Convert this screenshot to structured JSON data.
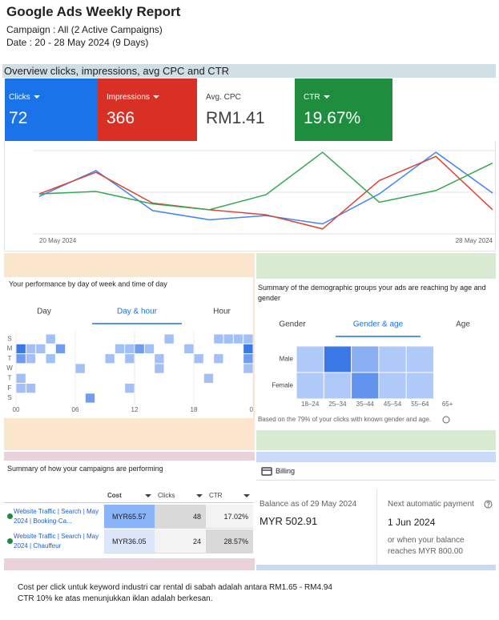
{
  "header": {
    "title": "Google Ads Weekly Report",
    "campaign": "Campaign : All (2 Active Campaigns)",
    "date": "Date : 20 - 28 May 2024 (9 Days)"
  },
  "overview": {
    "title": "Overview clicks, impressions, avg CPC and CTR",
    "clicks": "72",
    "impressions": "366",
    "cpc_label": "Avg. CPC",
    "cpc": "RM1.41",
    "ctr": "19.67%"
  },
  "chart_data": [
    {
      "type": "line",
      "x": [
        "20 May 2024",
        null,
        null,
        null,
        null,
        null,
        null,
        null,
        "28 May 2024"
      ],
      "ylim": [
        0,
        100
      ],
      "grid": true,
      "series": [
        {
          "name": "Clicks",
          "color": "#4285f4",
          "values": [
            45,
            76,
            28,
            17,
            22,
            12,
            48,
            98,
            49
          ]
        },
        {
          "name": "Impressions",
          "color": "#db4437",
          "values": [
            48,
            74,
            37,
            29,
            23,
            6,
            64,
            93,
            29
          ]
        },
        {
          "name": "CTR",
          "color": "#34a853",
          "values": [
            48,
            51,
            36,
            29,
            47,
            98,
            38,
            52,
            85
          ]
        }
      ]
    },
    {
      "type": "heatmap",
      "title": "Your performance by day of week and time of day",
      "tabs": [
        "Day",
        "Day & hour",
        "Hour"
      ],
      "active_tab": 1,
      "rows": [
        "S",
        "M",
        "T",
        "W",
        "T",
        "F",
        "S"
      ],
      "xticks": [
        "00",
        "06",
        "12",
        "18",
        "00"
      ],
      "max": 3,
      "values": [
        [
          0,
          0,
          0,
          1,
          0,
          0,
          0,
          0,
          0,
          0,
          0,
          0,
          0,
          0,
          0,
          1,
          0,
          0,
          0,
          0,
          1,
          1,
          1,
          1
        ],
        [
          3,
          1,
          1,
          0,
          2,
          0,
          0,
          0,
          0,
          0,
          1,
          1,
          2,
          1,
          0,
          0,
          0,
          1,
          0,
          0,
          0,
          0,
          0,
          3
        ],
        [
          2,
          1,
          0,
          1,
          0,
          0,
          0,
          0,
          0,
          1,
          0,
          1,
          0,
          0,
          1,
          0,
          0,
          0,
          1,
          0,
          1,
          0,
          0,
          2
        ],
        [
          0,
          0,
          0,
          0,
          0,
          0,
          1,
          0,
          0,
          0,
          0,
          0,
          0,
          0,
          1,
          0,
          0,
          0,
          0,
          0,
          0,
          0,
          0,
          1
        ],
        [
          1,
          0,
          0,
          0,
          0,
          0,
          0,
          0,
          0,
          0,
          0,
          0,
          0,
          0,
          0,
          0,
          0,
          0,
          0,
          1,
          0,
          0,
          0,
          0
        ],
        [
          1,
          1,
          0,
          0,
          0,
          0,
          0,
          0,
          0,
          0,
          0,
          1,
          0,
          0,
          0,
          0,
          0,
          0,
          0,
          0,
          0,
          0,
          0,
          0
        ],
        [
          0,
          0,
          0,
          0,
          0,
          0,
          0,
          2,
          0,
          0,
          0,
          0,
          0,
          0,
          0,
          0,
          0,
          0,
          0,
          0,
          0,
          0,
          0,
          0
        ]
      ]
    },
    {
      "type": "heatmap",
      "title": "Summary of the demographic groups your ads are reaching by age and gender",
      "tabs": [
        "Gender",
        "Gender & age",
        "Age"
      ],
      "active_tab": 1,
      "rows": [
        "Male",
        "Female"
      ],
      "categories": [
        "18–24",
        "25–34",
        "35–44",
        "45–54",
        "55–64",
        "65+"
      ],
      "max": 4,
      "values": [
        [
          1,
          4,
          2,
          1,
          1,
          0
        ],
        [
          1,
          1,
          3,
          1,
          1,
          0
        ]
      ],
      "note": "Based on the 79% of your clicks with known gender and age."
    }
  ],
  "campaigns": {
    "title": "Summary of how your campaigns are performing",
    "columns": [
      "Cost",
      "Clicks",
      "CTR"
    ],
    "rows": [
      {
        "name": "Website Traffic | Search | May 2024 | Booking-Ca...",
        "cost": "MYR65.57",
        "clicks": 48,
        "ctr": "17.02%"
      },
      {
        "name": "Website Traffic | Search | May 2024 | Chauffeur",
        "cost": "MYR36.05",
        "clicks": 24,
        "ctr": "28.57%"
      }
    ]
  },
  "billing": {
    "title": "Billing",
    "balance_label": "Balance as of 29 May 2024",
    "balance": "MYR 502.91",
    "next_label": "Next automatic payment",
    "next_date": "1 Jun 2024",
    "next_note": "or when your balance reaches MYR 800.00"
  },
  "footer": [
    "Cost per click untuk keyword industri car rental di sabah adalah antara RM1.65 - RM4.94",
    "CTR 10% ke atas menunjukkan iklan adalah berkesan."
  ]
}
